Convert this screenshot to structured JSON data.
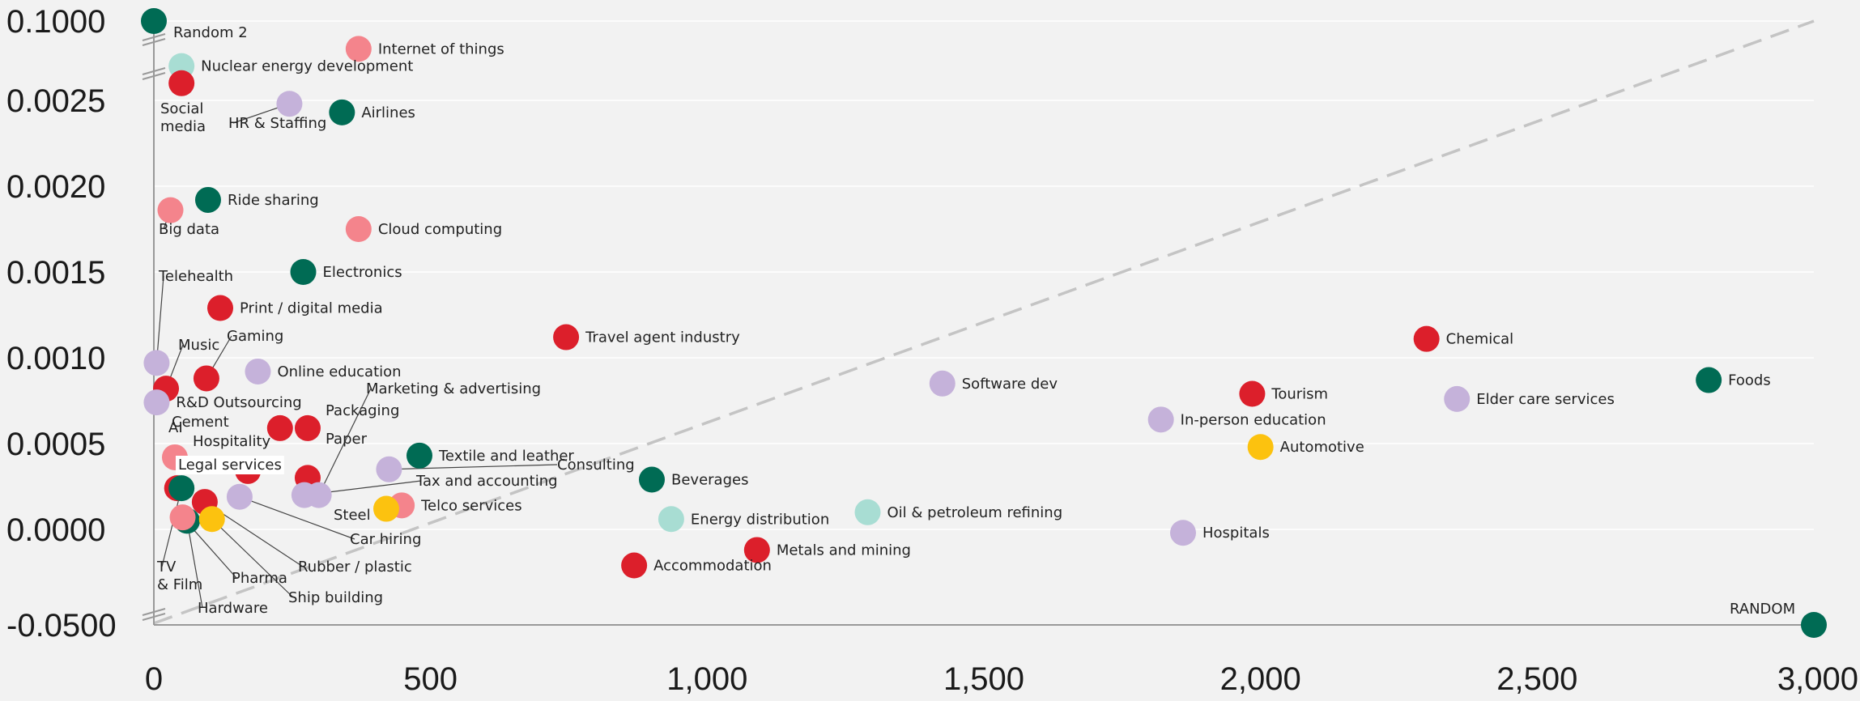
{
  "chart_data": {
    "type": "scatter",
    "title": "",
    "xlabel": "",
    "ylabel": "",
    "xlim": [
      0,
      3000
    ],
    "x_ticks": [
      "0",
      "500",
      "1,000",
      "1,500",
      "2,000",
      "2,500",
      "3,000"
    ],
    "x_tick_values": [
      0,
      500,
      1000,
      1500,
      2000,
      2500,
      3000
    ],
    "y_ticks": [
      "-0.0500",
      "0.0000",
      "0.0005",
      "0.0010",
      "0.0015",
      "0.0020",
      "0.0025",
      "0.1000"
    ],
    "y_tick_values": [
      -0.05,
      0.0,
      0.0005,
      0.001,
      0.0015,
      0.002,
      0.0025,
      0.1
    ],
    "y_axis_breaks": "broken axis between -0.0500 and 0.0000 and between 0.0025 and 0.1000",
    "reference_line": "dashed diagonal from bottom-left to top-right",
    "grid": "horizontal",
    "colors": {
      "dark_green": "#006b54",
      "light_teal": "#a8ddd3",
      "red": "#dc1f2b",
      "pink": "#f4848c",
      "lavender": "#c5b2da",
      "yellow": "#fcc20f"
    },
    "points": [
      {
        "label": "Random 2",
        "x": 0,
        "y": 0.1,
        "color": "dark_green"
      },
      {
        "label": "Internet of things",
        "x": 370,
        "y": 0.0028,
        "color": "pink"
      },
      {
        "label": "Nuclear energy development",
        "x": 50,
        "y": 0.0027,
        "color": "light_teal"
      },
      {
        "label": "Social media",
        "x": 50,
        "y": 0.0026,
        "color": "red"
      },
      {
        "label": "HR & Staffing",
        "x": 245,
        "y": 0.00248,
        "color": "lavender"
      },
      {
        "label": "Airlines",
        "x": 340,
        "y": 0.00243,
        "color": "dark_green"
      },
      {
        "label": "Ride sharing",
        "x": 98,
        "y": 0.00192,
        "color": "dark_green"
      },
      {
        "label": "Big data",
        "x": 30,
        "y": 0.00186,
        "color": "pink"
      },
      {
        "label": "Cloud computing",
        "x": 370,
        "y": 0.00175,
        "color": "pink"
      },
      {
        "label": "Electronics",
        "x": 270,
        "y": 0.0015,
        "color": "dark_green"
      },
      {
        "label": "Print / digital media",
        "x": 120,
        "y": 0.00129,
        "color": "red"
      },
      {
        "label": "Travel agent industry",
        "x": 745,
        "y": 0.00112,
        "color": "red"
      },
      {
        "label": "Chemical",
        "x": 2300,
        "y": 0.00111,
        "color": "red"
      },
      {
        "label": "Telehealth",
        "x": 5,
        "y": 0.00097,
        "color": "lavender"
      },
      {
        "label": "Gaming",
        "x": 95,
        "y": 0.00088,
        "color": "red"
      },
      {
        "label": "Online education",
        "x": 188,
        "y": 0.00092,
        "color": "lavender"
      },
      {
        "label": "Music",
        "x": 22,
        "y": 0.00082,
        "color": "red"
      },
      {
        "label": "Software dev",
        "x": 1425,
        "y": 0.00085,
        "color": "lavender"
      },
      {
        "label": "Foods",
        "x": 2810,
        "y": 0.00087,
        "color": "dark_green"
      },
      {
        "label": "Tourism",
        "x": 1985,
        "y": 0.00079,
        "color": "red"
      },
      {
        "label": "Elder care services",
        "x": 2355,
        "y": 0.00076,
        "color": "lavender"
      },
      {
        "label": "R&D Outsourcing",
        "x": 5,
        "y": 0.00074,
        "color": "lavender"
      },
      {
        "label": "In-person education",
        "x": 1820,
        "y": 0.00064,
        "color": "lavender"
      },
      {
        "label": "Cement",
        "x": 228,
        "y": 0.00059,
        "color": "red"
      },
      {
        "label": "Packaging",
        "x": 278,
        "y": 0.00059,
        "color": "red"
      },
      {
        "label": "Automotive",
        "x": 2000,
        "y": 0.00048,
        "color": "yellow"
      },
      {
        "label": "AI",
        "x": 38,
        "y": 0.00042,
        "color": "pink"
      },
      {
        "label": "Textile and leather",
        "x": 480,
        "y": 0.00043,
        "color": "dark_green"
      },
      {
        "label": "Hospitality",
        "x": 170,
        "y": 0.00034,
        "color": "red"
      },
      {
        "label": "Consulting",
        "x": 425,
        "y": 0.00035,
        "color": "lavender"
      },
      {
        "label": "Paper",
        "x": 278,
        "y": 0.0003,
        "color": "red"
      },
      {
        "label": "Beverages",
        "x": 900,
        "y": 0.00029,
        "color": "dark_green"
      },
      {
        "label": "Legal services",
        "x": 42,
        "y": 0.00024,
        "color": "red"
      },
      {
        "label": "TV & Film",
        "x": 50,
        "y": 0.00024,
        "color": "dark_green"
      },
      {
        "label": "Marketing & advertising",
        "x": 298,
        "y": 0.0002,
        "color": "lavender"
      },
      {
        "label": "Tax and accounting",
        "x": 272,
        "y": 0.0002,
        "color": "lavender"
      },
      {
        "label": "Car hiring",
        "x": 155,
        "y": 0.00019,
        "color": "lavender"
      },
      {
        "label": "Rubber / plastic",
        "x": 92,
        "y": 0.00016,
        "color": "red"
      },
      {
        "label": "Telco services",
        "x": 448,
        "y": 0.00014,
        "color": "pink"
      },
      {
        "label": "Steel",
        "x": 420,
        "y": 0.00012,
        "color": "yellow"
      },
      {
        "label": "Oil & petroleum refining",
        "x": 1290,
        "y": 0.0001,
        "color": "light_teal"
      },
      {
        "label": "Hardware",
        "x": 60,
        "y": 5e-05,
        "color": "dark_green"
      },
      {
        "label": "Pharma",
        "x": 52,
        "y": 7e-05,
        "color": "pink"
      },
      {
        "label": "Ship building",
        "x": 105,
        "y": 6e-05,
        "color": "yellow"
      },
      {
        "label": "Energy distribution",
        "x": 935,
        "y": 6e-05,
        "color": "light_teal"
      },
      {
        "label": "Hospitals",
        "x": 1860,
        "y": -2e-05,
        "color": "lavender"
      },
      {
        "label": "Metals and mining",
        "x": 1090,
        "y": -0.00012,
        "color": "red"
      },
      {
        "label": "Accommodation",
        "x": 868,
        "y": -0.00021,
        "color": "red"
      },
      {
        "label": "RANDOM",
        "x": 3000,
        "y": -0.05,
        "color": "dark_green"
      }
    ]
  }
}
